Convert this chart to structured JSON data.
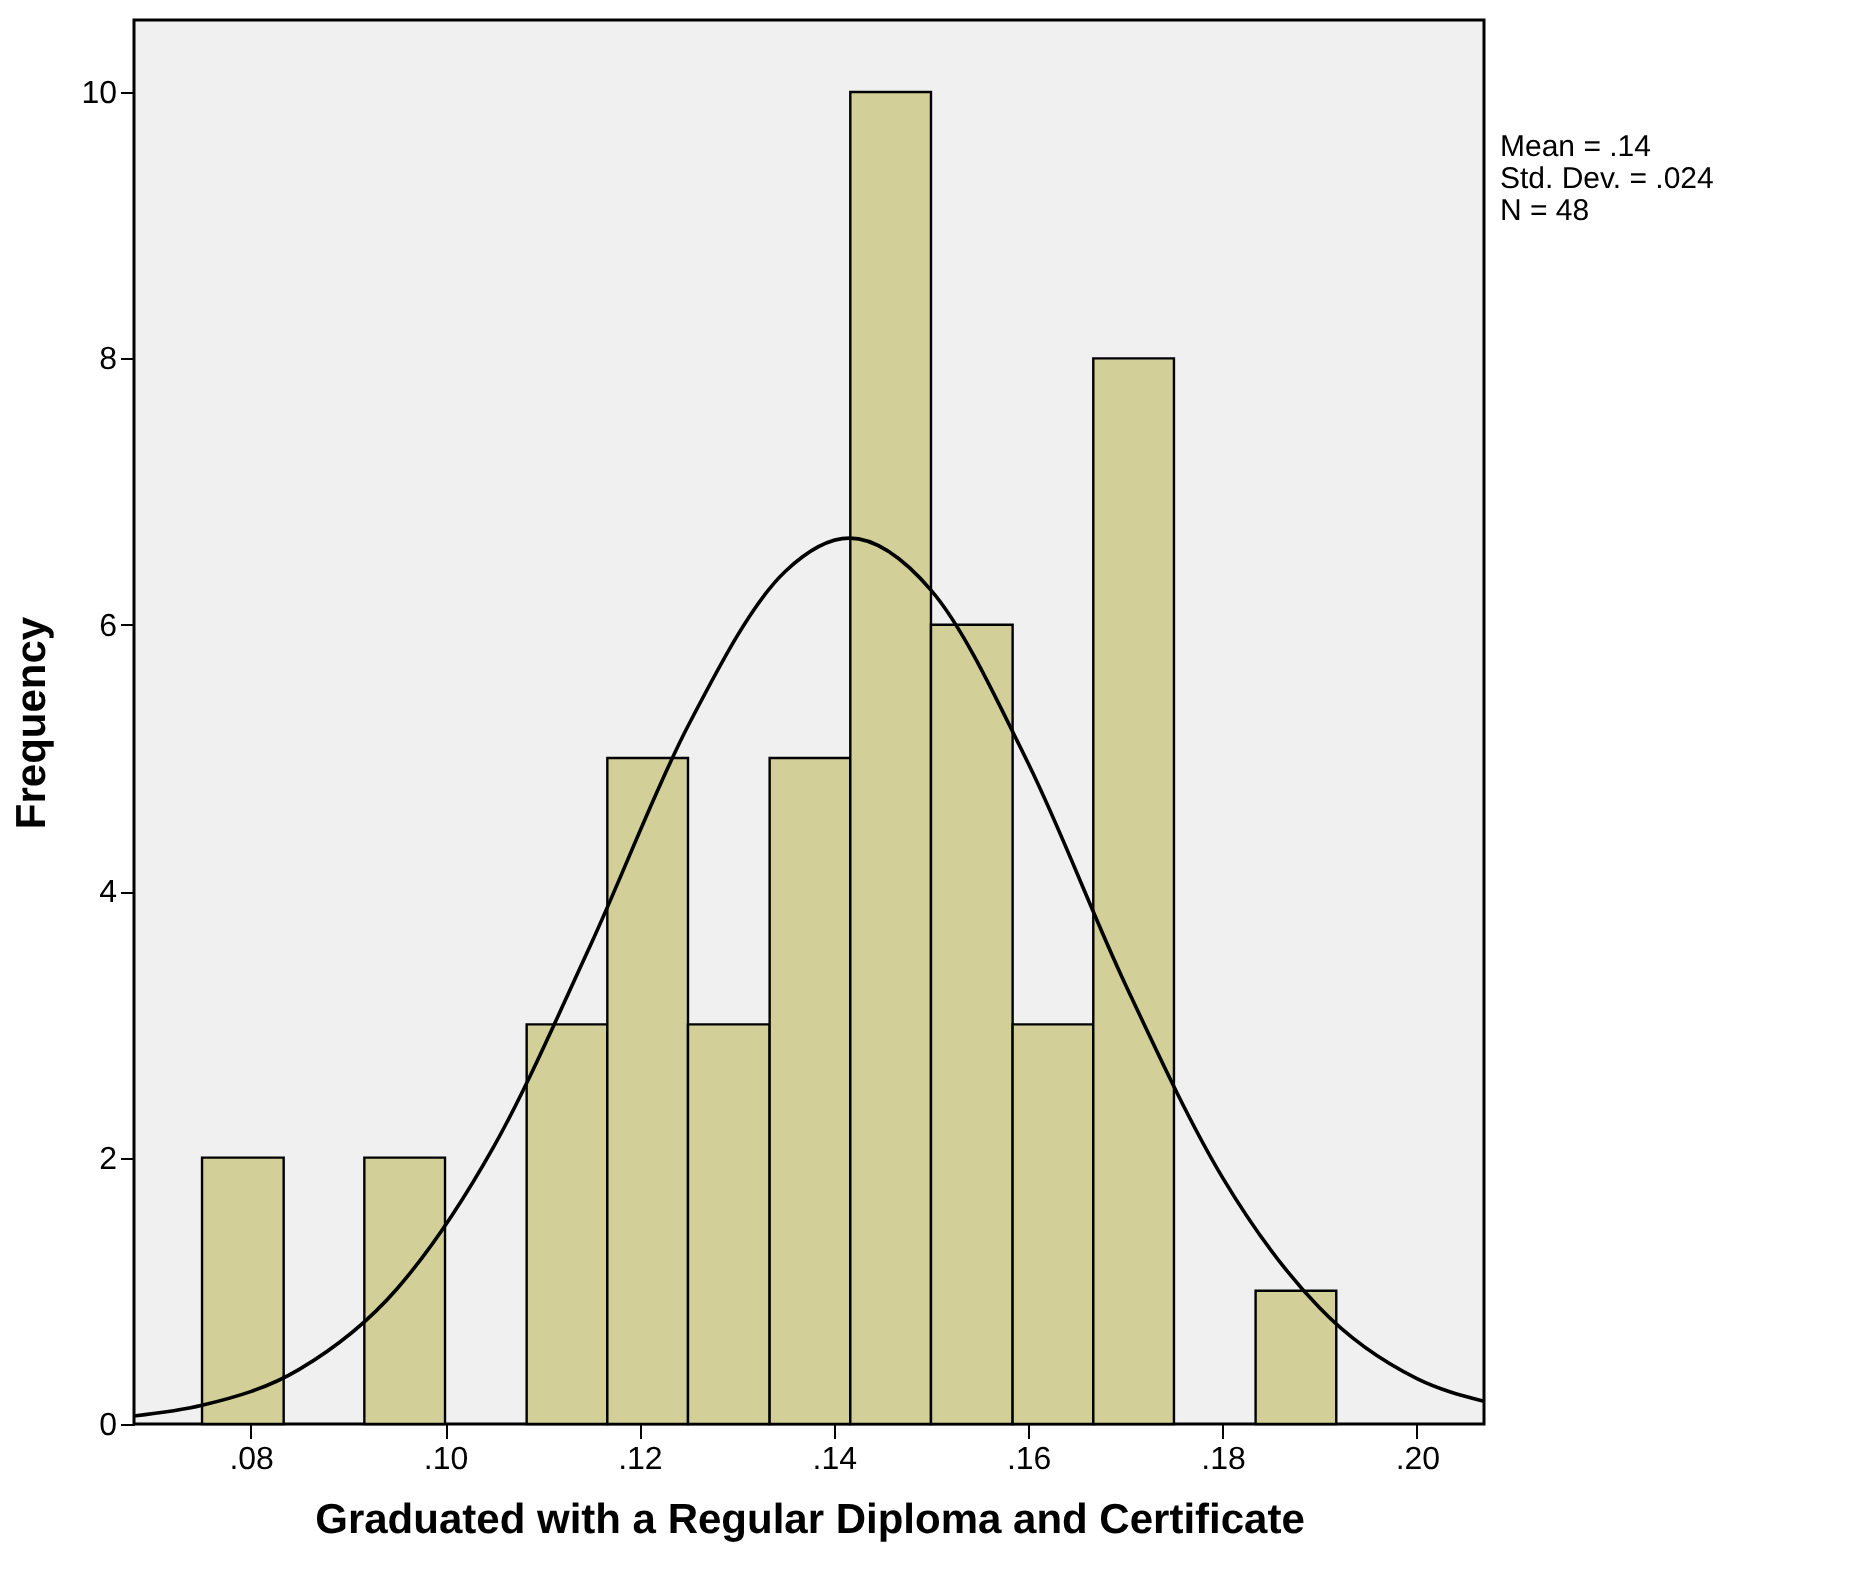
{
  "chart_data": {
    "type": "histogram",
    "xlabel": "Graduated with a Regular Diploma and Certificate",
    "ylabel": "Frequency",
    "bins": [
      0.075,
      0.0834,
      0.0917,
      0.1,
      0.1084,
      0.1167,
      0.125,
      0.1334,
      0.1417,
      0.15,
      0.1584,
      0.1667,
      0.175,
      0.1834,
      0.1917
    ],
    "values": [
      2,
      0,
      2,
      0,
      3,
      5,
      3,
      5,
      10,
      6,
      3,
      8,
      0,
      1
    ],
    "color": "#d3cf98",
    "series": [
      {
        "type": "line",
        "color": "#000000",
        "x": [
          0.068,
          0.075,
          0.085,
          0.095,
          0.105,
          0.115,
          0.125,
          0.135,
          0.1416,
          0.15,
          0.16,
          0.17,
          0.18,
          0.19,
          0.2,
          0.2069
        ],
        "values": [
          0.06,
          0.14,
          0.41,
          1.01,
          2.08,
          3.6,
          5.24,
          6.4,
          6.65,
          6.26,
          4.96,
          3.3,
          1.85,
          0.87,
          0.34,
          0.17
        ]
      }
    ],
    "xlim": [
      0.068,
      0.2069
    ],
    "xticks": [
      {
        "value": 0.08,
        "label": ".08"
      },
      {
        "value": 0.1,
        "label": ".10"
      },
      {
        "value": 0.12,
        "label": ".12"
      },
      {
        "value": 0.14,
        "label": ".14"
      },
      {
        "value": 0.16,
        "label": ".16"
      },
      {
        "value": 0.18,
        "label": ".18"
      },
      {
        "value": 0.2,
        "label": ".20"
      }
    ],
    "ylim": [
      0,
      10.54
    ],
    "yticks": [
      0,
      2,
      4,
      6,
      8,
      10
    ],
    "grid": false,
    "annotations": [
      "Mean = .14",
      "Std. Dev. = .024",
      "N = 48"
    ]
  }
}
